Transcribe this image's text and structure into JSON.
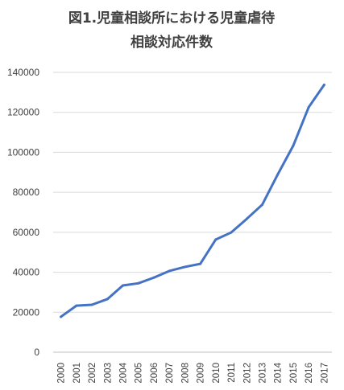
{
  "chart_data": {
    "type": "line",
    "title": "図1.児童相談所における児童虐待",
    "subtitle": "相談対応件数",
    "xlabel": "",
    "ylabel": "",
    "ylim": [
      0,
      140000
    ],
    "yticks": [
      0,
      20000,
      40000,
      60000,
      80000,
      100000,
      120000,
      140000
    ],
    "ytick_labels": [
      "0",
      "20000",
      "40000",
      "60000",
      "80000",
      "100000",
      "120000",
      "140000"
    ],
    "categories": [
      "2000",
      "2001",
      "2002",
      "2003",
      "2004",
      "2005",
      "2006",
      "2007",
      "2008",
      "2009",
      "2010",
      "2011",
      "2012",
      "2013",
      "2014",
      "2015",
      "2016",
      "2017"
    ],
    "series": [
      {
        "values": [
          17725,
          23274,
          23738,
          26569,
          33408,
          34472,
          37323,
          40639,
          42664,
          44211,
          56384,
          59919,
          66701,
          73802,
          88931,
          103286,
          122575,
          133778
        ]
      }
    ],
    "grid": true,
    "legend": "none",
    "colors": {
      "line": "#4472c4",
      "grid": "#d9d9d9",
      "text": "#404040"
    }
  }
}
